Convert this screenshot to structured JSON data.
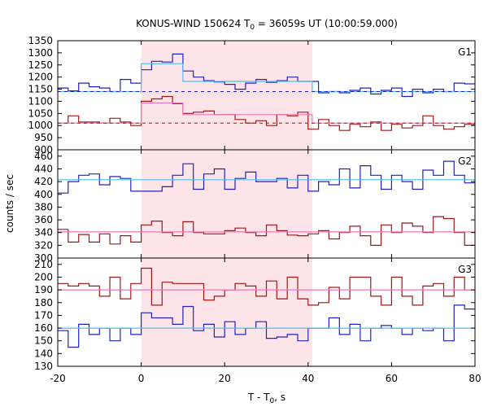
{
  "chart_data": {
    "type": "line",
    "title": "KONUS-WIND 150624 T",
    "title_sub": "0",
    "title_rest": " = 36059s UT (10:00:59.000)",
    "xlabel": "T - T",
    "xlabel_sub": "0",
    "xlabel_rest": ", s",
    "ylabel": "counts / sec",
    "xlim": [
      -20,
      80
    ],
    "xticks": [
      -20,
      0,
      20,
      40,
      60,
      80
    ],
    "shade": [
      0,
      41
    ],
    "colors": {
      "blue": "#2222bb",
      "red": "#a01818",
      "cyan": "#55bbee",
      "pink": "#ee77bb",
      "shade": "#fde4e8"
    },
    "panels": [
      {
        "label": "G1",
        "ylim": [
          900,
          1350
        ],
        "yticks": [
          900,
          950,
          1000,
          1050,
          1100,
          1150,
          1200,
          1250,
          1300,
          1350
        ],
        "blue": {
          "edges": [
            -20,
            -17.5,
            -15,
            -12.5,
            -10,
            -7.5,
            -5,
            -2.5,
            0,
            2.5,
            5,
            7.5,
            10,
            12.5,
            15,
            17.5,
            20,
            22.5,
            25,
            27.5,
            30,
            32.5,
            35,
            37.5,
            40,
            42.5,
            45,
            47.5,
            50,
            52.5,
            55,
            57.5,
            60,
            62.5,
            65,
            67.5,
            70,
            72.5,
            75,
            77.5,
            80
          ],
          "values": [
            1155,
            1143,
            1175,
            1160,
            1155,
            1140,
            1190,
            1175,
            1230,
            1265,
            1262,
            1295,
            1225,
            1200,
            1185,
            1180,
            1170,
            1150,
            1175,
            1190,
            1178,
            1185,
            1200,
            1182,
            1182,
            1135,
            1140,
            1135,
            1145,
            1155,
            1130,
            1145,
            1155,
            1120,
            1150,
            1135,
            1150,
            1140,
            1175,
            1172
          ]
        },
        "red": {
          "edges": [
            -20,
            -17.5,
            -15,
            -12.5,
            -10,
            -7.5,
            -5,
            -2.5,
            0,
            2.5,
            5,
            7.5,
            10,
            12.5,
            15,
            17.5,
            20,
            22.5,
            25,
            27.5,
            30,
            32.5,
            35,
            37.5,
            40,
            42.5,
            45,
            47.5,
            50,
            52.5,
            55,
            57.5,
            60,
            62.5,
            65,
            67.5,
            70,
            72.5,
            75,
            77.5,
            80
          ],
          "values": [
            1010,
            1040,
            1015,
            1015,
            1010,
            1030,
            1015,
            1000,
            1100,
            1110,
            1120,
            1090,
            1050,
            1055,
            1060,
            1045,
            1045,
            1025,
            1010,
            1020,
            1000,
            1045,
            1040,
            1055,
            985,
            1025,
            1000,
            980,
            1005,
            995,
            1015,
            980,
            1005,
            990,
            1000,
            1040,
            1000,
            985,
            995,
            1005
          ]
        },
        "blue_fit": [
          [
            -20,
            1140
          ],
          [
            0,
            1140
          ],
          [
            0,
            1255
          ],
          [
            10,
            1255
          ],
          [
            10,
            1182
          ],
          [
            41,
            1182
          ],
          [
            41,
            1140
          ],
          [
            80,
            1140
          ]
        ],
        "blue_base": 1140,
        "red_fit": [
          [
            -20,
            1010
          ],
          [
            0,
            1010
          ],
          [
            0,
            1093
          ],
          [
            10,
            1093
          ],
          [
            10,
            1045
          ],
          [
            41,
            1045
          ],
          [
            41,
            1010
          ],
          [
            80,
            1010
          ]
        ],
        "red_base": 1010
      },
      {
        "label": "G2",
        "ylim": [
          300,
          470
        ],
        "yticks": [
          300,
          320,
          340,
          360,
          380,
          400,
          420,
          440,
          460
        ],
        "blue": {
          "edges": [
            -20,
            -17.5,
            -15,
            -12.5,
            -10,
            -7.5,
            -5,
            -2.5,
            0,
            2.5,
            5,
            7.5,
            10,
            12.5,
            15,
            17.5,
            20,
            22.5,
            25,
            27.5,
            30,
            32.5,
            35,
            37.5,
            40,
            42.5,
            45,
            47.5,
            50,
            52.5,
            55,
            57.5,
            60,
            62.5,
            65,
            67.5,
            70,
            72.5,
            75,
            77.5,
            80
          ],
          "values": [
            402,
            420,
            430,
            432,
            415,
            428,
            425,
            405,
            405,
            405,
            412,
            430,
            448,
            408,
            432,
            440,
            408,
            425,
            435,
            420,
            420,
            425,
            410,
            430,
            405,
            420,
            415,
            440,
            410,
            445,
            430,
            408,
            430,
            420,
            408,
            438,
            430,
            452,
            430,
            418
          ]
        },
        "red": {
          "edges": [
            -20,
            -17.5,
            -15,
            -12.5,
            -10,
            -7.5,
            -5,
            -2.5,
            0,
            2.5,
            5,
            7.5,
            10,
            12.5,
            15,
            17.5,
            20,
            22.5,
            25,
            27.5,
            30,
            32.5,
            35,
            37.5,
            40,
            42.5,
            45,
            47.5,
            50,
            52.5,
            55,
            57.5,
            60,
            62.5,
            65,
            67.5,
            70,
            72.5,
            75,
            77.5,
            80
          ],
          "values": [
            345,
            325,
            337,
            325,
            338,
            322,
            335,
            325,
            352,
            358,
            340,
            335,
            357,
            340,
            338,
            338,
            343,
            347,
            340,
            335,
            352,
            343,
            336,
            335,
            338,
            343,
            330,
            340,
            350,
            335,
            320,
            352,
            340,
            355,
            350,
            340,
            365,
            362,
            340,
            320
          ]
        },
        "blue_fit": [
          [
            -20,
            423
          ],
          [
            80,
            423
          ]
        ],
        "red_fit": [
          [
            -20,
            341
          ],
          [
            80,
            341
          ]
        ]
      },
      {
        "label": "G3",
        "ylim": [
          130,
          215
        ],
        "yticks": [
          130,
          140,
          150,
          160,
          170,
          180,
          190,
          200,
          210
        ],
        "blue": {
          "edges": [
            -20,
            -17.5,
            -15,
            -12.5,
            -10,
            -7.5,
            -5,
            -2.5,
            0,
            2.5,
            5,
            7.5,
            10,
            12.5,
            15,
            17.5,
            20,
            22.5,
            25,
            27.5,
            30,
            32.5,
            35,
            37.5,
            40,
            42.5,
            45,
            47.5,
            50,
            52.5,
            55,
            57.5,
            60,
            62.5,
            65,
            67.5,
            70,
            72.5,
            75,
            77.5,
            80
          ],
          "values": [
            158,
            145,
            163,
            155,
            160,
            150,
            160,
            155,
            172,
            168,
            168,
            163,
            177,
            158,
            163,
            153,
            165,
            155,
            160,
            165,
            152,
            153,
            155,
            150,
            160,
            160,
            168,
            155,
            163,
            150,
            160,
            162,
            160,
            155,
            160,
            158,
            160,
            150,
            178,
            175
          ]
        },
        "red": {
          "edges": [
            -20,
            -17.5,
            -15,
            -12.5,
            -10,
            -7.5,
            -5,
            -2.5,
            0,
            2.5,
            5,
            7.5,
            10,
            12.5,
            15,
            17.5,
            20,
            22.5,
            25,
            27.5,
            30,
            32.5,
            35,
            37.5,
            40,
            42.5,
            45,
            47.5,
            50,
            52.5,
            55,
            57.5,
            60,
            62.5,
            65,
            67.5,
            70,
            72.5,
            75,
            77.5,
            80
          ],
          "values": [
            195,
            193,
            195,
            193,
            185,
            200,
            183,
            195,
            207,
            178,
            196,
            195,
            195,
            195,
            182,
            185,
            190,
            195,
            193,
            185,
            197,
            183,
            200,
            183,
            178,
            180,
            192,
            183,
            200,
            200,
            185,
            178,
            200,
            185,
            178,
            193,
            195,
            185,
            200,
            190
          ]
        },
        "blue_fit": [
          [
            -20,
            160
          ],
          [
            80,
            160
          ]
        ],
        "red_fit": [
          [
            -20,
            190
          ],
          [
            80,
            190
          ]
        ]
      }
    ]
  }
}
